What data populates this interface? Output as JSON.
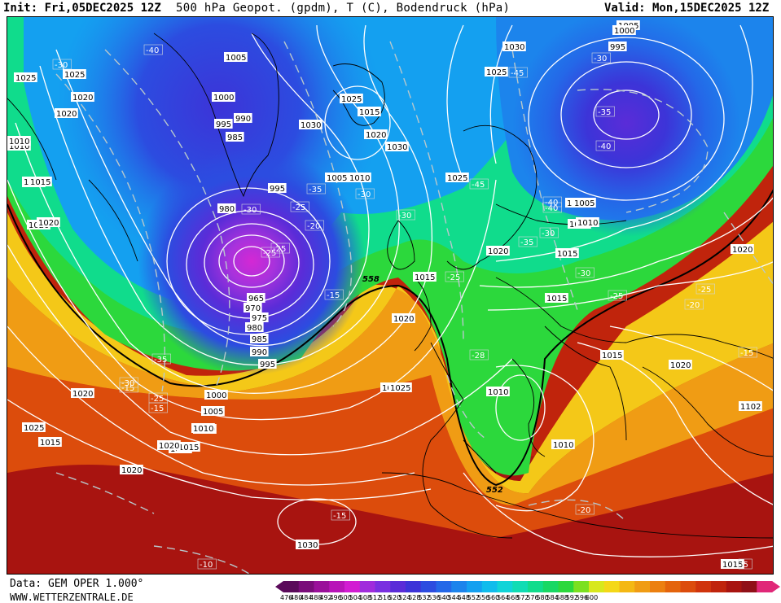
{
  "header": {
    "init": "Init: Fri,05DEC2025 12Z",
    "title": "500 hPa Geopot. (gpdm), T (C), Bodendruck (hPa)",
    "valid": "Valid: Mon,15DEC2025 12Z"
  },
  "footer": {
    "data_source": "Data: GEM OPER 1.000°",
    "website": "WWW.WETTERZENTRALE.DE"
  },
  "colorbar": {
    "ticks": [
      "476",
      "480",
      "484",
      "488",
      "492",
      "496",
      "500",
      "504",
      "508",
      "512",
      "516",
      "520",
      "524",
      "528",
      "532",
      "536",
      "540",
      "544",
      "548",
      "552",
      "556",
      "560",
      "564",
      "568",
      "572",
      "576",
      "580",
      "584",
      "588",
      "592",
      "596",
      "600"
    ],
    "colors": [
      "#5a0a5a",
      "#7a0c7a",
      "#9a109a",
      "#b814b8",
      "#d21cd2",
      "#a02cdc",
      "#7a30e0",
      "#5a2cd8",
      "#3c34d8",
      "#2c4ce0",
      "#2468e8",
      "#1c84ec",
      "#14a0f0",
      "#10bcec",
      "#10d4d8",
      "#10dcb4",
      "#10dc8c",
      "#18d864",
      "#2cd83c",
      "#7ce020",
      "#d8e81c",
      "#f4d818",
      "#f4b814",
      "#f09c14",
      "#ec8010",
      "#e4640c",
      "#dc4c0c",
      "#d0340c",
      "#c0240c",
      "#a81410",
      "#901018",
      "#e02878"
    ]
  },
  "map": {
    "geopotential_labels": [
      "558",
      "552"
    ],
    "pressure_labels": [
      "1005",
      "1000",
      "995",
      "990",
      "985",
      "980",
      "975",
      "970",
      "965",
      "1010",
      "1015",
      "1020",
      "1025",
      "1030"
    ],
    "temperature_labels": [
      "-40",
      "-35",
      "-30",
      "-25",
      "-20",
      "-15",
      "-10",
      "-45"
    ],
    "labels": [
      {
        "t": "1005"
      },
      {
        "t": "1000"
      },
      {
        "t": "995"
      },
      {
        "t": "-30"
      },
      {
        "t": "1030"
      },
      {
        "t": "1025"
      },
      {
        "t": "-45"
      },
      {
        "t": "-35"
      },
      {
        "t": "-40"
      },
      {
        "t": "1005"
      },
      {
        "t": "1010"
      },
      {
        "t": "-40"
      },
      {
        "t": "-30"
      },
      {
        "t": "1025"
      },
      {
        "t": "1020"
      },
      {
        "t": "1010"
      },
      {
        "t": "1015"
      },
      {
        "t": "1005"
      },
      {
        "t": "1000"
      },
      {
        "t": "995"
      },
      {
        "t": "990"
      },
      {
        "t": "985"
      },
      {
        "t": "980"
      },
      {
        "t": "-30"
      },
      {
        "t": "-25"
      },
      {
        "t": "995"
      },
      {
        "t": "-35"
      },
      {
        "t": "-25"
      },
      {
        "t": "-20"
      },
      {
        "t": "-15"
      },
      {
        "t": "1005"
      },
      {
        "t": "1010"
      },
      {
        "t": "1025"
      },
      {
        "t": "1015"
      },
      {
        "t": "1020"
      },
      {
        "t": "1030"
      },
      {
        "t": "1015"
      },
      {
        "t": "1020"
      },
      {
        "t": "-30"
      },
      {
        "t": "-30"
      },
      {
        "t": "1025"
      },
      {
        "t": "-45"
      },
      {
        "t": "-40"
      },
      {
        "t": "1005"
      },
      {
        "t": "1010"
      },
      {
        "t": "-35"
      },
      {
        "t": "1020"
      },
      {
        "t": "1015"
      },
      {
        "t": "-30"
      },
      {
        "t": "-25"
      },
      {
        "t": "1015"
      },
      {
        "t": "-25"
      },
      {
        "t": "1015"
      },
      {
        "t": "558"
      },
      {
        "t": "1020"
      },
      {
        "t": "-25"
      },
      {
        "t": "-20"
      },
      {
        "t": "1020"
      },
      {
        "t": "-15"
      },
      {
        "t": "1015"
      },
      {
        "t": "1020"
      },
      {
        "t": "-15"
      },
      {
        "t": "-28"
      },
      {
        "t": "1010"
      },
      {
        "t": "1010"
      },
      {
        "t": "552"
      },
      {
        "t": "-20"
      },
      {
        "t": "-15"
      },
      {
        "t": "1030"
      },
      {
        "t": "-10"
      },
      {
        "t": "1015"
      },
      {
        "t": "-5"
      },
      {
        "t": "1025"
      },
      {
        "t": "1025"
      },
      {
        "t": "1020"
      },
      {
        "t": "1015"
      },
      {
        "t": "1010"
      },
      {
        "t": "1020"
      },
      {
        "t": "1025"
      },
      {
        "t": "1030"
      },
      {
        "t": "-40"
      },
      {
        "t": "-30"
      },
      {
        "t": "1025"
      },
      {
        "t": "1020"
      },
      {
        "t": "1010"
      },
      {
        "t": "1015"
      },
      {
        "t": "1020"
      },
      {
        "t": "-35"
      },
      {
        "t": "-30"
      },
      {
        "t": "1000"
      },
      {
        "t": "1005"
      },
      {
        "t": "1010"
      },
      {
        "t": "1015"
      },
      {
        "t": "1020"
      },
      {
        "t": "-25"
      },
      {
        "t": "-15"
      },
      {
        "t": "1025"
      },
      {
        "t": "995"
      },
      {
        "t": "990"
      },
      {
        "t": "985"
      },
      {
        "t": "980"
      },
      {
        "t": "975"
      },
      {
        "t": "970"
      },
      {
        "t": "965"
      },
      {
        "t": "-25"
      },
      {
        "t": "1102"
      }
    ]
  }
}
